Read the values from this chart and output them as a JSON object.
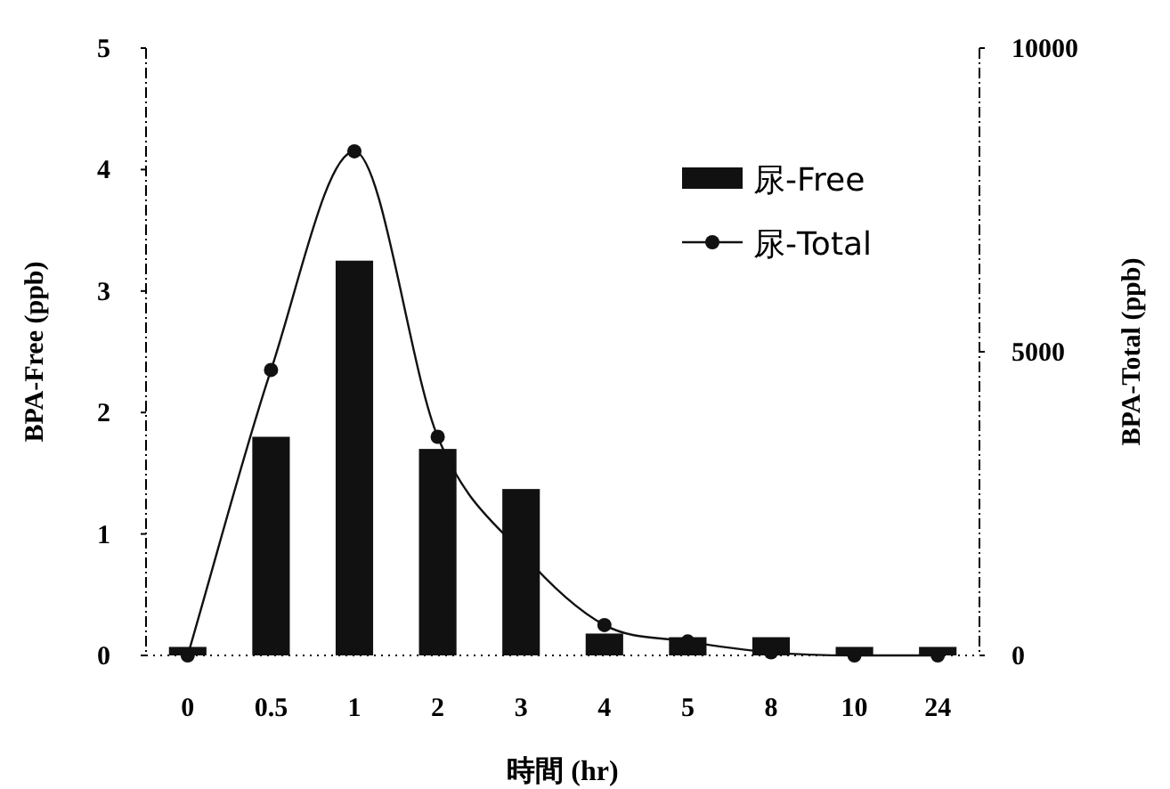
{
  "chart_data": {
    "type": "bar",
    "xlabel": "時間 (hr)",
    "ylabel": "BPA-Free (ppb)",
    "y2label": "BPA-Total (ppb)",
    "categories": [
      "0",
      "0.5",
      "1",
      "2",
      "3",
      "4",
      "5",
      "8",
      "10",
      "24"
    ],
    "series": [
      {
        "name": "尿-Free",
        "color": "#111111",
        "values": [
          0.07,
          1.8,
          3.25,
          1.7,
          1.37,
          0.18,
          0.15,
          0.15,
          0.07,
          0.07
        ]
      },
      {
        "name": "尿-Total",
        "type": "line",
        "axis": "y2",
        "color": "#111111",
        "marker": "circle",
        "values": [
          0,
          4700,
          8300,
          3600,
          1700,
          500,
          230,
          50,
          0,
          0
        ]
      }
    ],
    "ylim": [
      0,
      5
    ],
    "yticks": [
      0,
      1,
      2,
      3,
      4,
      5
    ],
    "y2lim": [
      0,
      10000
    ],
    "y2ticks": [
      0,
      5000,
      10000
    ],
    "grid": false,
    "legend": "top right"
  }
}
